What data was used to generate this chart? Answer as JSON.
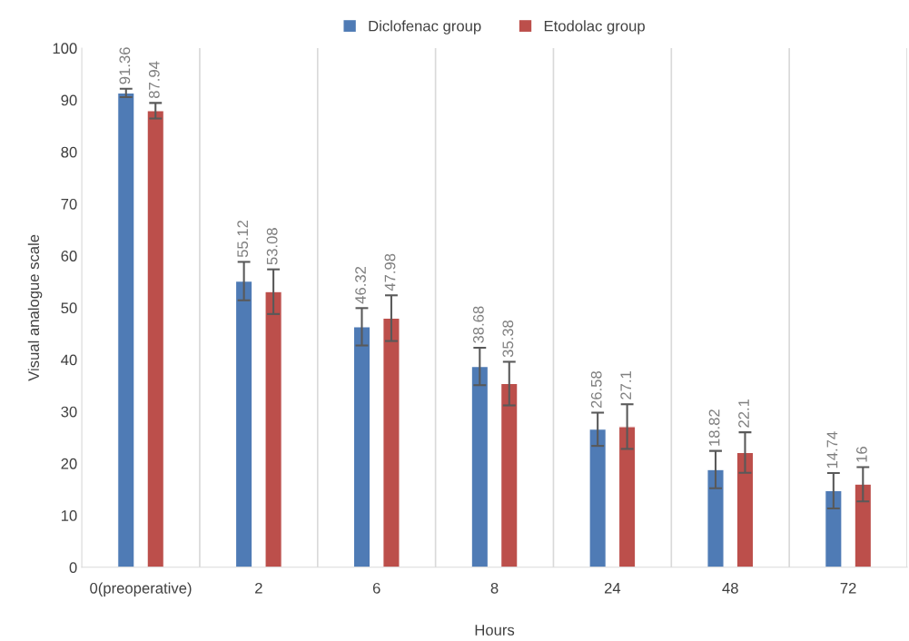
{
  "chart_data": {
    "type": "bar",
    "xlabel": "Hours",
    "ylabel": "Visual analogue scale",
    "categories": [
      "0(preoperative)",
      "2",
      "6",
      "8",
      "24",
      "48",
      "72"
    ],
    "series": [
      {
        "name": "Diclofenac group",
        "color": "#4f7bb5",
        "values": [
          91.36,
          55.12,
          46.32,
          38.68,
          26.58,
          18.82,
          14.74
        ],
        "errors": [
          0.8,
          3.7,
          3.6,
          3.6,
          3.2,
          3.6,
          3.4
        ]
      },
      {
        "name": "Etodolac group",
        "color": "#bc4f4b",
        "values": [
          87.94,
          53.08,
          47.98,
          35.38,
          27.1,
          22.1,
          16
        ],
        "errors": [
          1.5,
          4.3,
          4.4,
          4.2,
          4.3,
          3.9,
          3.3
        ]
      }
    ],
    "ylim": [
      0,
      100
    ],
    "yticks": [
      0,
      10,
      20,
      30,
      40,
      50,
      60,
      70,
      80,
      90,
      100
    ],
    "grid": "x",
    "legend": "top",
    "data_labels": true
  }
}
